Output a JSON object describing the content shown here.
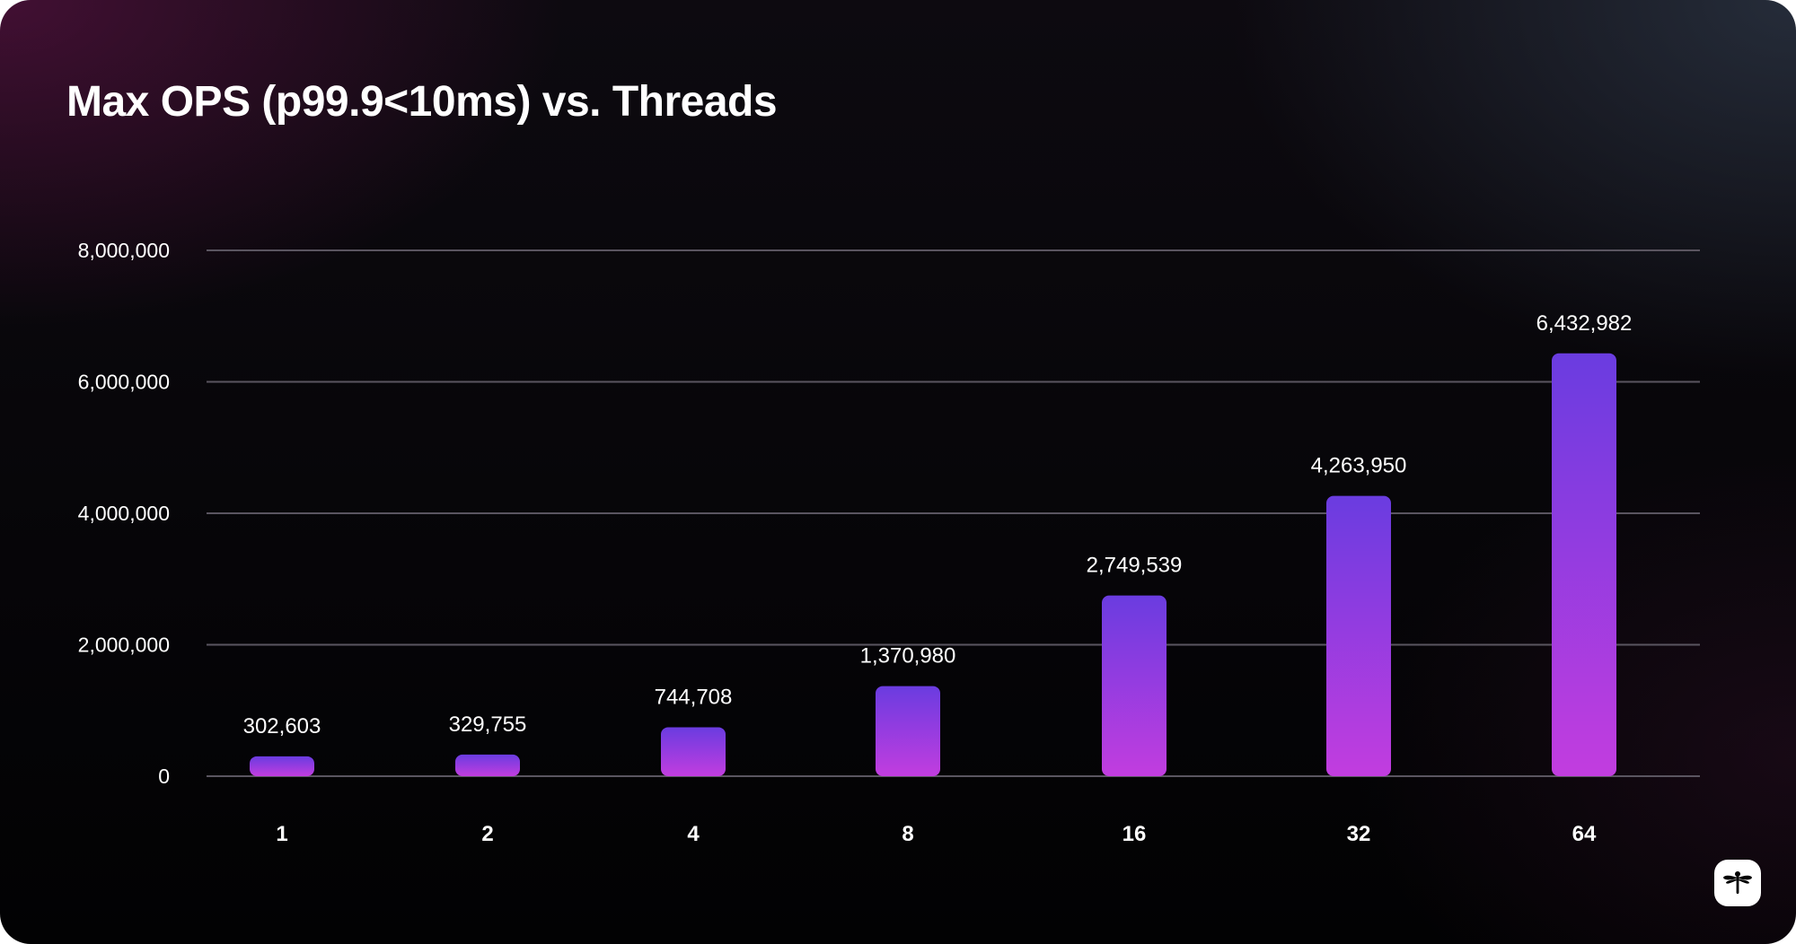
{
  "chart_data": {
    "type": "bar",
    "title": "Max OPS (p99.9<10ms) vs. Threads",
    "xlabel": "",
    "ylabel": "",
    "categories": [
      "1",
      "2",
      "4",
      "8",
      "16",
      "32",
      "64"
    ],
    "values": [
      302603,
      329755,
      744708,
      1370980,
      2749539,
      4263950,
      6432982
    ],
    "value_labels": [
      "302,603",
      "329,755",
      "744,708",
      "1,370,980",
      "2,749,539",
      "4,263,950",
      "6,432,982"
    ],
    "ylim": [
      0,
      8000000
    ],
    "yticks": [
      0,
      2000000,
      4000000,
      6000000,
      8000000
    ],
    "ytick_labels": [
      "0",
      "2,000,000",
      "4,000,000",
      "6,000,000",
      "8,000,000"
    ],
    "grid": true,
    "colors": {
      "bar_top": "#6a3ce0",
      "bar_bottom": "#c23ddf",
      "grid": "#5a5560",
      "text": "#ffffff"
    }
  },
  "logo": {
    "icon": "dragonfly-icon"
  }
}
